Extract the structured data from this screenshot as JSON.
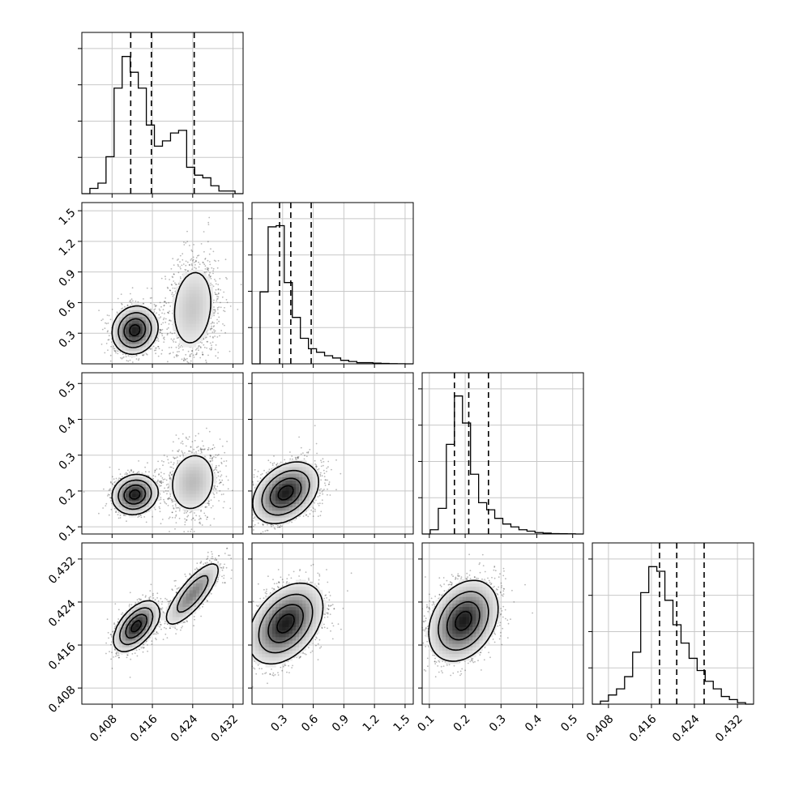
{
  "chart_data": {
    "type": "corner",
    "grid": true,
    "variables": [
      {
        "index": 0,
        "range": [
          0.402,
          0.434
        ],
        "ticks": [
          0.408,
          0.416,
          0.424,
          0.432
        ],
        "tick_labels": [
          "0.408",
          "0.416",
          "0.424",
          "0.432"
        ],
        "quantiles": [
          0.4117,
          0.4158,
          0.4243
        ]
      },
      {
        "index": 1,
        "range": [
          0.0,
          1.58
        ],
        "ticks": [
          0.3,
          0.6,
          0.9,
          1.2,
          1.5
        ],
        "tick_labels": [
          "0.3",
          "0.6",
          "0.9",
          "1.2",
          "1.5"
        ],
        "quantiles": [
          0.27,
          0.38,
          0.58
        ]
      },
      {
        "index": 2,
        "range": [
          0.08,
          0.53
        ],
        "ticks": [
          0.1,
          0.2,
          0.3,
          0.4,
          0.5
        ],
        "tick_labels": [
          "0.1",
          "0.2",
          "0.3",
          "0.4",
          "0.5"
        ],
        "quantiles": [
          0.17,
          0.21,
          0.265
        ]
      },
      {
        "index": 3,
        "range": [
          0.405,
          0.435
        ],
        "ticks": [
          0.408,
          0.416,
          0.424,
          0.432
        ],
        "tick_labels": [
          "0.408",
          "0.416",
          "0.424",
          "0.432"
        ],
        "quantiles": [
          0.4175,
          0.4207,
          0.4258
        ]
      }
    ],
    "histograms": [
      {
        "var": 0,
        "counts": [
          0,
          2,
          4,
          14,
          40,
          52,
          46,
          40,
          26,
          18,
          20,
          23,
          24,
          10,
          7,
          6,
          3,
          1,
          1,
          0
        ],
        "ymax": 55
      },
      {
        "var": 1,
        "counts": [
          0,
          62,
          118,
          119,
          70,
          40,
          22,
          13,
          10,
          7,
          5,
          3,
          2,
          1,
          1,
          0.6,
          0.3,
          0.2,
          0.1,
          0
        ],
        "ymax": 125
      },
      {
        "var": 2,
        "counts": [
          0,
          3,
          18,
          63,
          97,
          78,
          42,
          22,
          17,
          11,
          7,
          5,
          3,
          2,
          1,
          0.6,
          0.3,
          0.2,
          0.1,
          0
        ],
        "ymax": 102
      },
      {
        "var": 3,
        "counts": [
          0,
          2,
          6,
          10,
          18,
          34,
          73,
          90,
          87,
          68,
          52,
          40,
          30,
          22,
          15,
          10,
          5,
          3,
          1,
          0
        ],
        "ymax": 95
      }
    ],
    "pairs": [
      {
        "x": 0,
        "y": 1,
        "components": [
          {
            "mx": 0.4125,
            "my": 0.33,
            "sx": 0.0021,
            "sy": 0.11,
            "r": 0.1,
            "w": 0.58
          },
          {
            "mx": 0.424,
            "my": 0.55,
            "sx": 0.0027,
            "sy": 0.26,
            "r": 0.15,
            "w": 0.42
          }
        ]
      },
      {
        "x": 0,
        "y": 2,
        "components": [
          {
            "mx": 0.4125,
            "my": 0.19,
            "sx": 0.0021,
            "sy": 0.026,
            "r": 0.1,
            "w": 0.58
          },
          {
            "mx": 0.424,
            "my": 0.225,
            "sx": 0.0027,
            "sy": 0.05,
            "r": 0.12,
            "w": 0.42
          }
        ]
      },
      {
        "x": 0,
        "y": 3,
        "components": [
          {
            "mx": 0.4128,
            "my": 0.4195,
            "sx": 0.0021,
            "sy": 0.0022,
            "r": 0.55,
            "w": 0.58
          },
          {
            "mx": 0.424,
            "my": 0.4255,
            "sx": 0.0027,
            "sy": 0.003,
            "r": 0.8,
            "w": 0.42
          }
        ]
      },
      {
        "x": 1,
        "y": 2,
        "components": [
          {
            "mx": 0.33,
            "my": 0.195,
            "sx": 0.15,
            "sy": 0.04,
            "r": 0.35,
            "w": 1.0
          }
        ]
      },
      {
        "x": 1,
        "y": 3,
        "components": [
          {
            "mx": 0.33,
            "my": 0.42,
            "sx": 0.17,
            "sy": 0.0035,
            "r": 0.4,
            "w": 1.0
          }
        ]
      },
      {
        "x": 2,
        "y": 3,
        "components": [
          {
            "mx": 0.195,
            "my": 0.4205,
            "sx": 0.045,
            "sy": 0.0035,
            "r": 0.3,
            "w": 1.0
          }
        ]
      }
    ]
  }
}
